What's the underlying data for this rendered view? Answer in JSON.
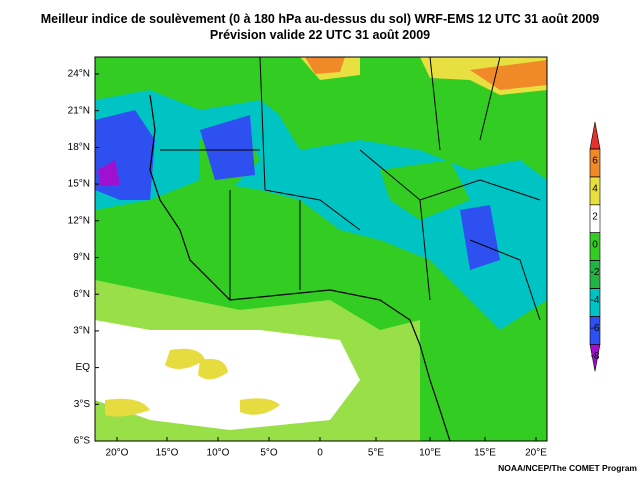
{
  "header": {
    "title": "Meilleur indice de soulèvement (0 à 180 hPa au-dessus du sol) WRF-EMS 12 UTC 31 août 2009",
    "subtitle": "Prévision valide 22 UTC 31 août 2009"
  },
  "map": {
    "lat_labels": [
      "24°N",
      "21°N",
      "18°N",
      "15°N",
      "12°N",
      "9°N",
      "6°N",
      "3°N",
      "EQ",
      "3°S",
      "6°S"
    ],
    "lon_labels": [
      "20°O",
      "15°O",
      "10°O",
      "5°O",
      "0",
      "5°E",
      "10°E",
      "15°E",
      "20°E"
    ]
  },
  "colorbar": {
    "ticks": [
      6,
      4,
      2,
      0,
      -2,
      -4,
      -6,
      -8
    ],
    "colors": [
      "#e8302a",
      "#f08a28",
      "#e8e040",
      "#ffffff",
      "#33cc22",
      "#22b444",
      "#00c4c4",
      "#2f50f0",
      "#a010d0"
    ]
  },
  "credit": "NOAA/NCEP/The COMET Program"
}
